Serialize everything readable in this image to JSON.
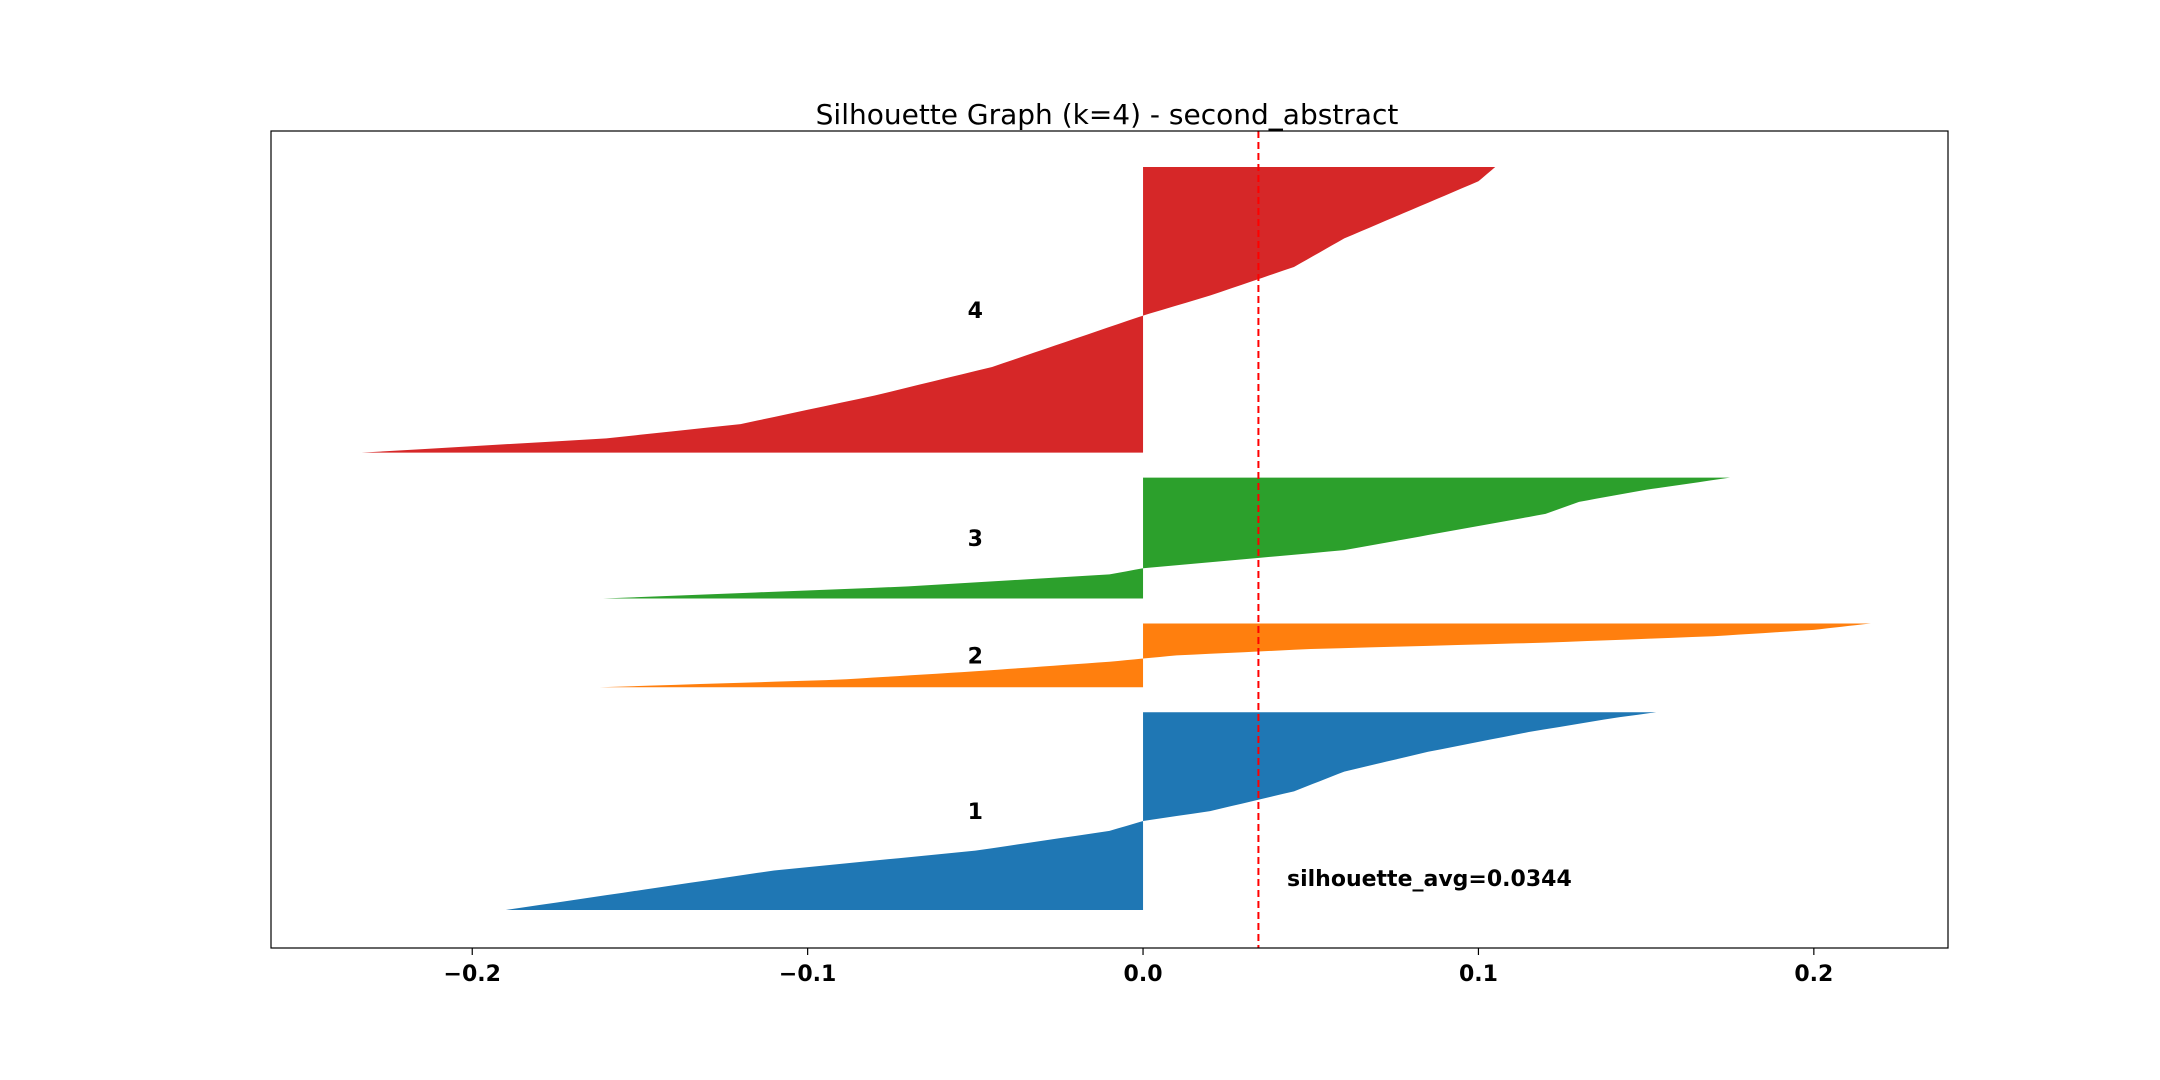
{
  "chart_data": {
    "type": "area",
    "title": "Silhouette Graph (k=4) - second_abstract",
    "xlabel": "",
    "ylabel": "",
    "xlim": [
      -0.26,
      0.24
    ],
    "xticks": [
      {
        "value": -0.2,
        "label": "−0.2"
      },
      {
        "value": -0.1,
        "label": "−0.1"
      },
      {
        "value": 0.0,
        "label": "0.0"
      },
      {
        "value": 0.1,
        "label": "0.1"
      },
      {
        "value": 0.2,
        "label": "0.2"
      }
    ],
    "grid": false,
    "silhouette_avg": 0.0344,
    "annotation": "silhouette_avg=0.0344",
    "clusters": [
      {
        "label": "1",
        "color": "#1f77b4",
        "size": 90,
        "min": -0.19,
        "max": 0.153,
        "profile": [
          [
            0,
            -0.19
          ],
          [
            0.1,
            -0.15
          ],
          [
            0.2,
            -0.11
          ],
          [
            0.3,
            -0.05
          ],
          [
            0.4,
            -0.01
          ],
          [
            0.45,
            0.0
          ],
          [
            0.5,
            0.02
          ],
          [
            0.6,
            0.045
          ],
          [
            0.7,
            0.06
          ],
          [
            0.8,
            0.085
          ],
          [
            0.9,
            0.115
          ],
          [
            0.97,
            0.14
          ],
          [
            1.0,
            0.153
          ]
        ]
      },
      {
        "label": "2",
        "color": "#ff7f0e",
        "size": 29,
        "min": -0.162,
        "max": 0.217,
        "profile": [
          [
            0,
            -0.162
          ],
          [
            0.12,
            -0.09
          ],
          [
            0.25,
            -0.05
          ],
          [
            0.4,
            -0.01
          ],
          [
            0.45,
            0.0
          ],
          [
            0.5,
            0.01
          ],
          [
            0.6,
            0.05
          ],
          [
            0.7,
            0.12
          ],
          [
            0.8,
            0.17
          ],
          [
            0.9,
            0.2
          ],
          [
            0.96,
            0.21
          ],
          [
            1.0,
            0.217
          ]
        ]
      },
      {
        "label": "3",
        "color": "#2ca02c",
        "size": 55,
        "min": -0.161,
        "max": 0.175,
        "profile": [
          [
            0,
            -0.161
          ],
          [
            0.1,
            -0.07
          ],
          [
            0.2,
            -0.01
          ],
          [
            0.25,
            0.0
          ],
          [
            0.3,
            0.02
          ],
          [
            0.4,
            0.06
          ],
          [
            0.5,
            0.08
          ],
          [
            0.6,
            0.1
          ],
          [
            0.7,
            0.12
          ],
          [
            0.8,
            0.13
          ],
          [
            0.9,
            0.15
          ],
          [
            1.0,
            0.175
          ]
        ]
      },
      {
        "label": "4",
        "color": "#d62728",
        "size": 130,
        "min": -0.233,
        "max": 0.105,
        "profile": [
          [
            0,
            -0.233
          ],
          [
            0.05,
            -0.16
          ],
          [
            0.1,
            -0.12
          ],
          [
            0.2,
            -0.08
          ],
          [
            0.3,
            -0.045
          ],
          [
            0.4,
            -0.02
          ],
          [
            0.48,
            0.0
          ],
          [
            0.55,
            0.02
          ],
          [
            0.65,
            0.045
          ],
          [
            0.75,
            0.06
          ],
          [
            0.85,
            0.08
          ],
          [
            0.95,
            0.1
          ],
          [
            1.0,
            0.105
          ]
        ]
      }
    ]
  }
}
